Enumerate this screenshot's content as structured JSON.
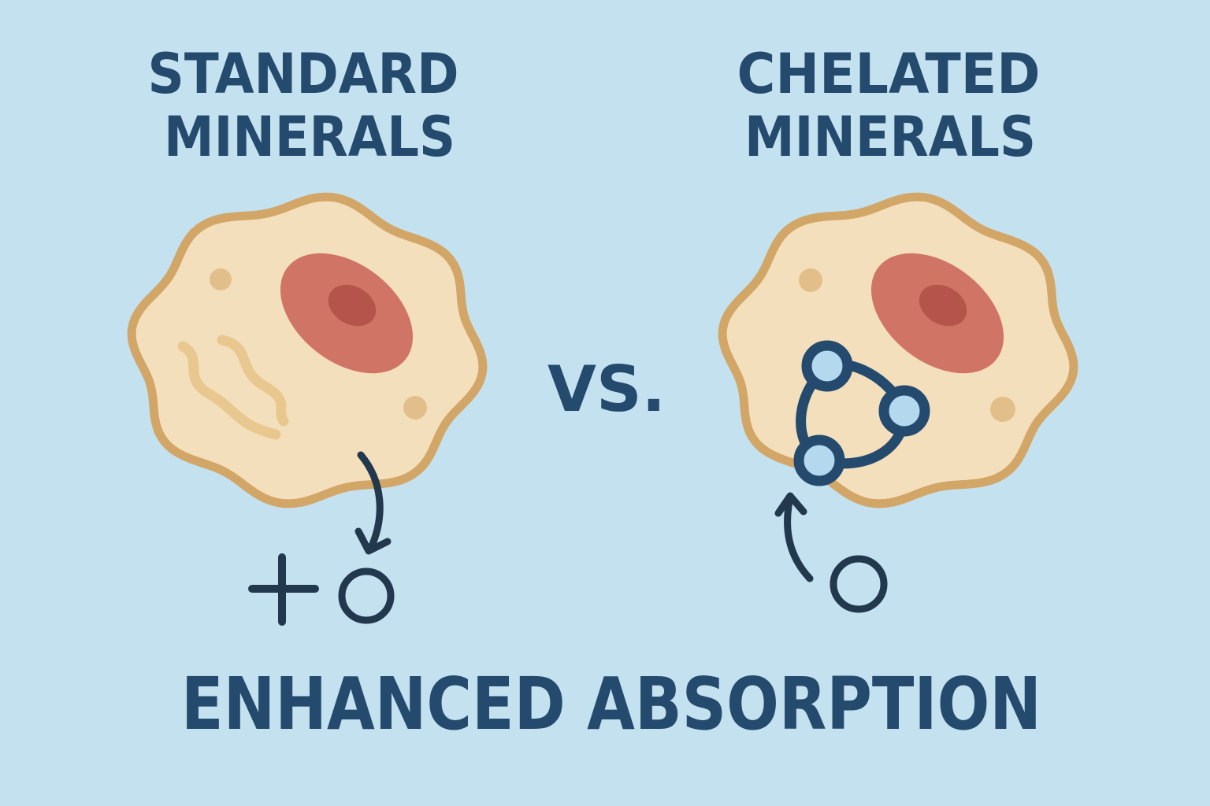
{
  "left": {
    "title_line1": "STANDARD",
    "title_line2": "MINERALS"
  },
  "right": {
    "title_line1": "CHELATED",
    "title_line2": "MINERALS"
  },
  "versus": "VS.",
  "footer": "ENHANCED ABSORPTION",
  "colors": {
    "background": "#c4e1f0",
    "text": "#244a6d",
    "cell_fill": "#f4dfbd",
    "cell_border": "#d2a667",
    "nucleus": "#d07465",
    "nucleolus": "#b5544a",
    "chelate_node": "#b4d8ee"
  }
}
